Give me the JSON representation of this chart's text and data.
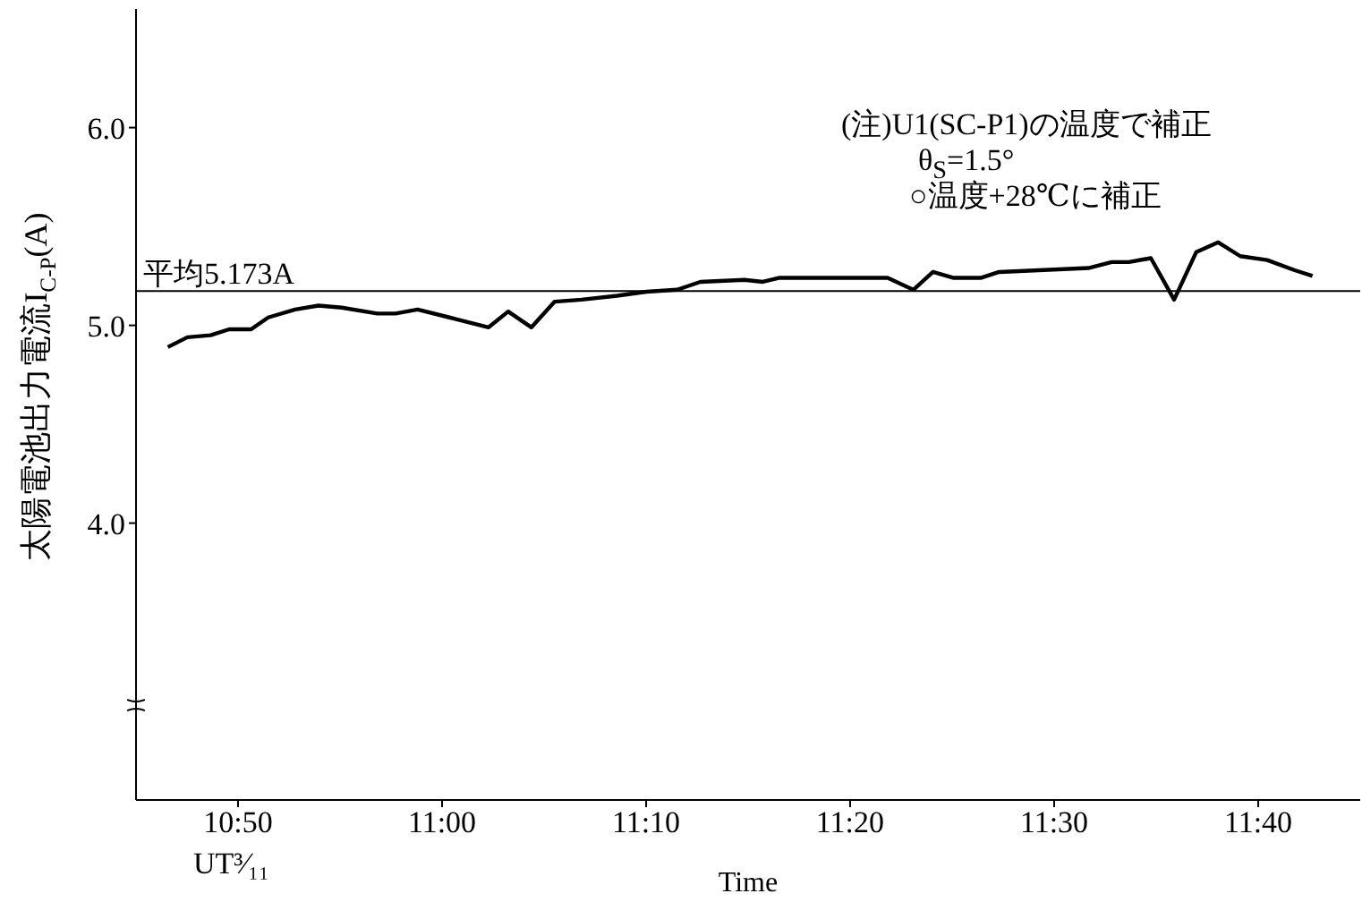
{
  "chart_data": {
    "type": "line",
    "xlabel": "Time",
    "ylabel": "太陽電池出力電流I$_{C-P}$(A)",
    "annotations": [
      "(注)U1(SC-P1)の温度で補正",
      "θ$_{S}$=1.5°",
      "○温度+28℃に補正",
      "UT³⁄₁₁"
    ],
    "x": [
      10.776,
      10.792,
      10.811,
      10.826,
      10.844,
      10.858,
      10.88,
      10.899,
      10.918,
      10.947,
      10.962,
      10.98,
      11.006,
      11.038,
      11.054,
      11.073,
      11.092,
      11.114,
      11.143,
      11.167,
      11.192,
      11.211,
      11.247,
      11.262,
      11.275,
      11.364,
      11.385,
      11.401,
      11.418,
      11.44,
      11.455,
      11.528,
      11.547,
      11.561,
      11.579,
      11.598,
      11.616,
      11.634,
      11.652,
      11.674,
      11.696,
      11.711
    ],
    "series": [
      {
        "color": "#000000",
        "values": [
          4.89,
          4.94,
          4.95,
          4.98,
          4.98,
          5.04,
          5.08,
          5.1,
          5.09,
          5.06,
          5.06,
          5.08,
          5.04,
          4.99,
          5.07,
          4.99,
          5.12,
          5.13,
          5.15,
          5.17,
          5.18,
          5.22,
          5.23,
          5.22,
          5.24,
          5.24,
          5.18,
          5.27,
          5.24,
          5.24,
          5.27,
          5.29,
          5.32,
          5.32,
          5.34,
          5.13,
          5.37,
          5.42,
          5.35,
          5.33,
          5.28,
          5.25
        ]
      }
    ],
    "xlim": [
      10.75,
      11.75
    ],
    "xticks": [
      {
        "value": 10.8333,
        "label": "10:50"
      },
      {
        "value": 11.0,
        "label": "11:00"
      },
      {
        "value": 11.1667,
        "label": "11:10"
      },
      {
        "value": 11.3333,
        "label": "11:20"
      },
      {
        "value": 11.5,
        "label": "11:30"
      },
      {
        "value": 11.6667,
        "label": "11:40"
      }
    ],
    "ylim": [
      2.6,
      6.6
    ],
    "yticks": [
      {
        "value": 4,
        "label": "4.0"
      },
      {
        "value": 5,
        "label": "5.0"
      },
      {
        "value": 6,
        "label": "6.0"
      }
    ],
    "ref_lines": [
      {
        "axis": "y",
        "value": 5.173,
        "label": "平均5.173A",
        "color": "#000000"
      }
    ],
    "grid": false,
    "legend": false,
    "marker": "none",
    "line_style": "solid"
  }
}
